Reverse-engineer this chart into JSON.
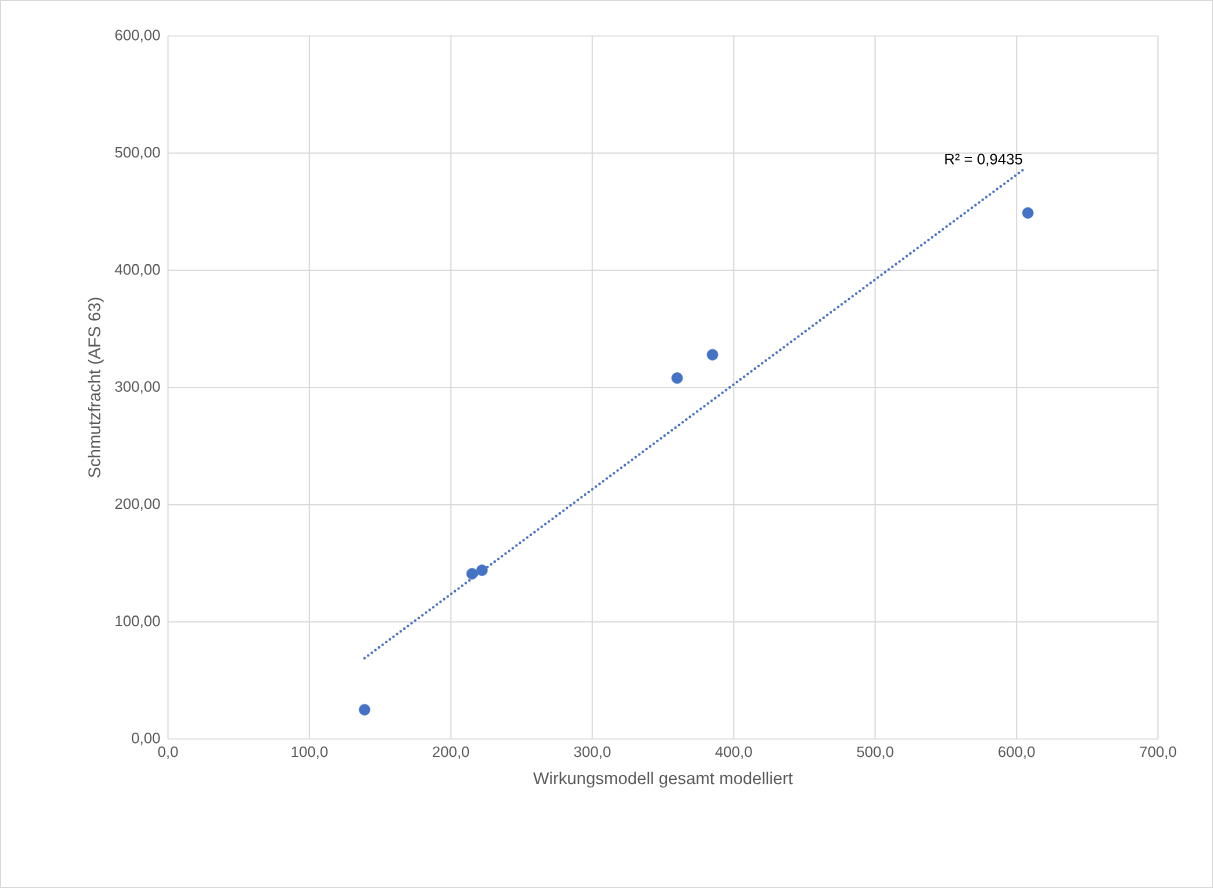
{
  "chart_data": {
    "type": "scatter",
    "xlabel": "Wirkungsmodell gesamt modelliert",
    "ylabel": "Schmutzfracht (AFS 63)",
    "xlim": [
      0,
      700
    ],
    "ylim": [
      0,
      600
    ],
    "xticks": [
      {
        "value": 0,
        "label": "0,0"
      },
      {
        "value": 100,
        "label": "100,0"
      },
      {
        "value": 200,
        "label": "200,0"
      },
      {
        "value": 300,
        "label": "300,0"
      },
      {
        "value": 400,
        "label": "400,0"
      },
      {
        "value": 500,
        "label": "500,0"
      },
      {
        "value": 600,
        "label": "600,0"
      },
      {
        "value": 700,
        "label": "700,0"
      }
    ],
    "yticks": [
      {
        "value": 0,
        "label": "0,00"
      },
      {
        "value": 100,
        "label": "100,00"
      },
      {
        "value": 200,
        "label": "200,00"
      },
      {
        "value": 300,
        "label": "300,00"
      },
      {
        "value": 400,
        "label": "400,00"
      },
      {
        "value": 500,
        "label": "500,00"
      },
      {
        "value": 600,
        "label": "600,00"
      }
    ],
    "grid": true,
    "series": [
      {
        "marker": "circle",
        "color": "#4472c4",
        "x": [
          139,
          215,
          222,
          360,
          385,
          608
        ],
        "values": [
          25,
          141,
          144,
          308,
          328,
          449
        ]
      },
      {
        "type": "line",
        "marker": "none",
        "color": "#4472c4",
        "line_style": "dotted",
        "x": [
          139,
          606
        ],
        "values": [
          69,
          487
        ]
      }
    ],
    "annotations": [
      "R² = 0,9435"
    ]
  }
}
